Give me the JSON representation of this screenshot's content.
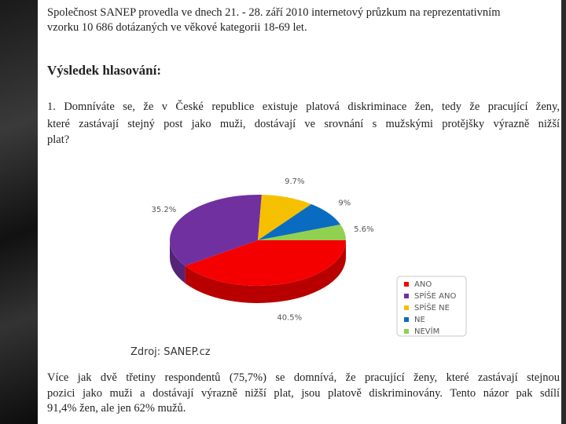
{
  "intro": [
    "Společnost SANEP provedla ve dnech 21. - 28. září 2010 internetový průzkum na reprezentativním",
    "vzorku 10 686 dotázaných ve věkové kategorii 18-69 let."
  ],
  "heading": "Výsledek hlasování:",
  "question": [
    "1. Domníváte se, že v České republice existuje platová diskriminace žen, tedy že pracující ženy,",
    "které zastávají stejný post jako muži, dostávají ve srovnání s mužskými protějšky výrazně nižší",
    "plat?"
  ],
  "chart_data": {
    "type": "pie",
    "categories": [
      "ANO",
      "SPÍŠE ANO",
      "SPÍŠE NE",
      "NE",
      "NEVÍM"
    ],
    "values": [
      40.5,
      35.2,
      9.7,
      9,
      5.6
    ],
    "value_labels": [
      "40.5%",
      "35.2%",
      "9.7%",
      "9%",
      "5.6%"
    ],
    "colors": [
      "#f50000",
      "#7030a0",
      "#f5c000",
      "#0a6cc0",
      "#92d050"
    ]
  },
  "source": "Zdroj: SANEP.cz",
  "conclusion": [
    "Více jak dvě třetiny respondentů (75,7%) se domnívá, že pracující ženy, které zastávají stejnou",
    "pozici jako muži a dostávají výrazně nižší plat, jsou platově diskriminovány. Tento názor pak sdílí",
    "91,4% žen, ale jen 62% mužů."
  ]
}
